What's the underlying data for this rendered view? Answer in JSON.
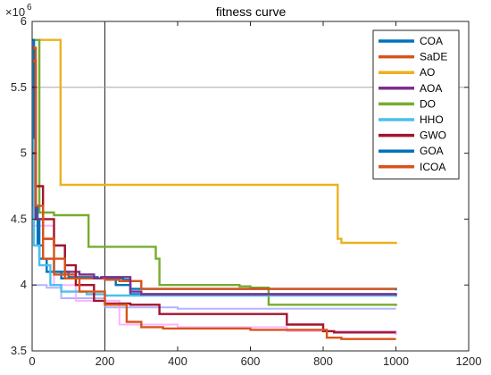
{
  "chart_data": {
    "type": "line",
    "title": "fitness curve",
    "xlabel": "",
    "ylabel": "",
    "xlim": [
      0,
      1200
    ],
    "ylim": [
      3.5,
      6
    ],
    "y_multiplier_label": "×10",
    "y_multiplier_exponent": "6",
    "xticks": [
      0,
      200,
      400,
      600,
      800,
      1000,
      1200
    ],
    "yticks": [
      3.5,
      4,
      4.5,
      5,
      5.5,
      6
    ],
    "xtick_labels": [
      "0",
      "200",
      "400",
      "600",
      "800",
      "1000",
      "1200"
    ],
    "ytick_labels": [
      "3.5",
      "4",
      "4.5",
      "5",
      "5.5",
      "6"
    ],
    "grid": "partial",
    "reference_lines": {
      "vertical_x": 200,
      "horizontal_y": 5.5
    },
    "legend_position": "top-right",
    "series": [
      {
        "name": "COA",
        "color": "#0072BD",
        "points": [
          [
            0,
            5.86
          ],
          [
            5,
            4.6
          ],
          [
            15,
            4.3
          ],
          [
            30,
            4.2
          ],
          [
            60,
            4.1
          ],
          [
            100,
            4.06
          ],
          [
            180,
            4.05
          ],
          [
            250,
            4.04
          ],
          [
            270,
            3.93
          ],
          [
            600,
            3.93
          ],
          [
            1000,
            3.93
          ]
        ]
      },
      {
        "name": "SaDE",
        "color": "#D95319",
        "points": [
          [
            0,
            5.8
          ],
          [
            10,
            4.5
          ],
          [
            30,
            4.2
          ],
          [
            60,
            4.08
          ],
          [
            120,
            4.05
          ],
          [
            200,
            4.04
          ],
          [
            240,
            4.03
          ],
          [
            300,
            3.97
          ],
          [
            1000,
            3.97
          ]
        ]
      },
      {
        "name": "AO",
        "color": "#EDB120",
        "points": [
          [
            0,
            5.86
          ],
          [
            75,
            5.86
          ],
          [
            78,
            4.76
          ],
          [
            835,
            4.76
          ],
          [
            840,
            4.35
          ],
          [
            850,
            4.32
          ],
          [
            1000,
            4.31
          ]
        ]
      },
      {
        "name": "AOA",
        "color": "#7E2F8E",
        "points": [
          [
            0,
            5.5
          ],
          [
            10,
            4.5
          ],
          [
            30,
            4.35
          ],
          [
            60,
            4.3
          ],
          [
            90,
            4.1
          ],
          [
            130,
            4.08
          ],
          [
            170,
            4.05
          ],
          [
            190,
            4.06
          ],
          [
            270,
            3.95
          ],
          [
            300,
            3.93
          ],
          [
            1000,
            3.92
          ]
        ]
      },
      {
        "name": "DO",
        "color": "#77AC30",
        "points": [
          [
            0,
            5.86
          ],
          [
            15,
            5.86
          ],
          [
            20,
            4.55
          ],
          [
            60,
            4.53
          ],
          [
            150,
            4.53
          ],
          [
            155,
            4.29
          ],
          [
            335,
            4.29
          ],
          [
            340,
            4.2
          ],
          [
            350,
            4.0
          ],
          [
            570,
            3.99
          ],
          [
            600,
            3.98
          ],
          [
            650,
            3.85
          ],
          [
            1000,
            3.84
          ]
        ]
      },
      {
        "name": "HHO",
        "color": "#4DBEEE",
        "points": [
          [
            0,
            5.1
          ],
          [
            5,
            4.3
          ],
          [
            20,
            4.15
          ],
          [
            50,
            4.0
          ],
          [
            80,
            3.95
          ],
          [
            150,
            3.93
          ],
          [
            200,
            3.92
          ],
          [
            1000,
            3.91
          ]
        ]
      },
      {
        "name": "GWO",
        "color": "#A2142F",
        "points": [
          [
            0,
            5.0
          ],
          [
            10,
            4.75
          ],
          [
            30,
            4.5
          ],
          [
            60,
            4.3
          ],
          [
            90,
            4.15
          ],
          [
            120,
            4.0
          ],
          [
            170,
            3.88
          ],
          [
            200,
            3.86
          ],
          [
            270,
            3.85
          ],
          [
            350,
            3.78
          ],
          [
            650,
            3.78
          ],
          [
            700,
            3.7
          ],
          [
            800,
            3.65
          ],
          [
            830,
            3.64
          ],
          [
            1000,
            3.64
          ]
        ]
      },
      {
        "name": "GOA",
        "color": "#0072BD",
        "points": [
          [
            0,
            5.86
          ],
          [
            5,
            4.5
          ],
          [
            20,
            4.2
          ],
          [
            40,
            4.1
          ],
          [
            80,
            4.05
          ],
          [
            150,
            4.05
          ],
          [
            200,
            4.05
          ],
          [
            230,
            4.0
          ],
          [
            270,
            3.97
          ],
          [
            600,
            3.97
          ],
          [
            1000,
            3.96
          ]
        ]
      },
      {
        "name": "ICOA",
        "color": "#D95319",
        "points": [
          [
            0,
            5.7
          ],
          [
            10,
            4.6
          ],
          [
            30,
            4.35
          ],
          [
            60,
            4.2
          ],
          [
            90,
            4.05
          ],
          [
            130,
            3.95
          ],
          [
            200,
            3.85
          ],
          [
            260,
            3.72
          ],
          [
            300,
            3.68
          ],
          [
            360,
            3.67
          ],
          [
            600,
            3.66
          ],
          [
            790,
            3.66
          ],
          [
            810,
            3.6
          ],
          [
            850,
            3.59
          ],
          [
            1000,
            3.59
          ]
        ]
      }
    ],
    "extra_series": [
      {
        "color": "#9999ff",
        "points": [
          [
            0,
            4.0
          ],
          [
            40,
            3.98
          ],
          [
            80,
            3.9
          ],
          [
            200,
            3.83
          ],
          [
            400,
            3.82
          ],
          [
            1000,
            3.82
          ]
        ]
      },
      {
        "color": "#ff99ff",
        "points": [
          [
            0,
            4.45
          ],
          [
            60,
            4.0
          ],
          [
            120,
            3.88
          ],
          [
            240,
            3.7
          ],
          [
            400,
            3.68
          ],
          [
            700,
            3.65
          ],
          [
            1000,
            3.62
          ]
        ]
      }
    ]
  }
}
